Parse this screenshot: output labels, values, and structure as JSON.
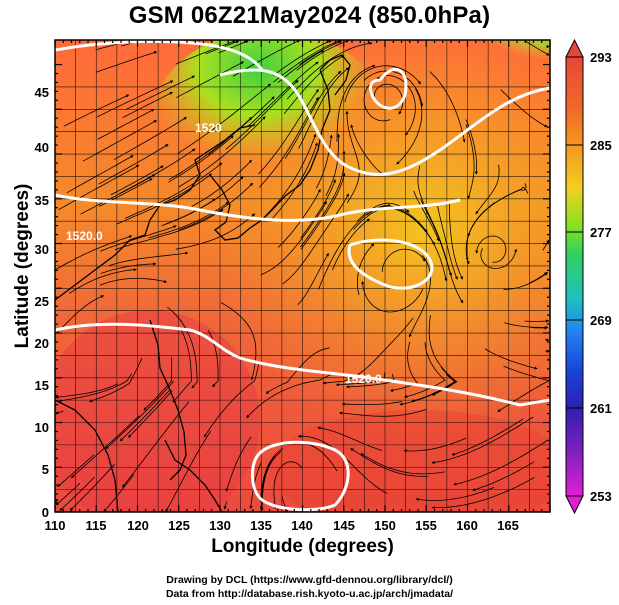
{
  "title": "GSM 06Z21May2024 (850.0hPa)",
  "axes": {
    "xlabel": "Longitude (degrees)",
    "ylabel": "Latitude (degrees)",
    "xlim": [
      110,
      170
    ],
    "ylim": [
      0,
      50
    ],
    "xticks": [
      "110",
      "115",
      "120",
      "125",
      "130",
      "135",
      "140",
      "145",
      "150",
      "155",
      "160",
      "165"
    ],
    "yticks": [
      "0",
      "5",
      "10",
      "15",
      "20",
      "25",
      "30",
      "35",
      "40",
      "45"
    ]
  },
  "colorbar": {
    "tick_labels": [
      "293",
      "285",
      "277",
      "269",
      "261",
      "253"
    ],
    "colors": [
      "#e8463a",
      "#f06a2a",
      "#f6a020",
      "#f0d020",
      "#8ee020",
      "#30d060",
      "#20c0c0",
      "#2080f0",
      "#1a40d8",
      "#3020b0",
      "#8020c0",
      "#e020d0"
    ]
  },
  "contours": [
    {
      "label": "1520.0",
      "color": "#ffffff"
    },
    {
      "label": "1520.0",
      "color": "#ffffff"
    },
    {
      "label": "1520",
      "color": "#ffffff"
    }
  ],
  "credits": {
    "line1": "Drawing by DCL (https://www.gfd-dennou.org/library/dcl/)",
    "line2": "Data from http://database.rish.kyoto-u.ac.jp/arch/jmadata/"
  }
}
